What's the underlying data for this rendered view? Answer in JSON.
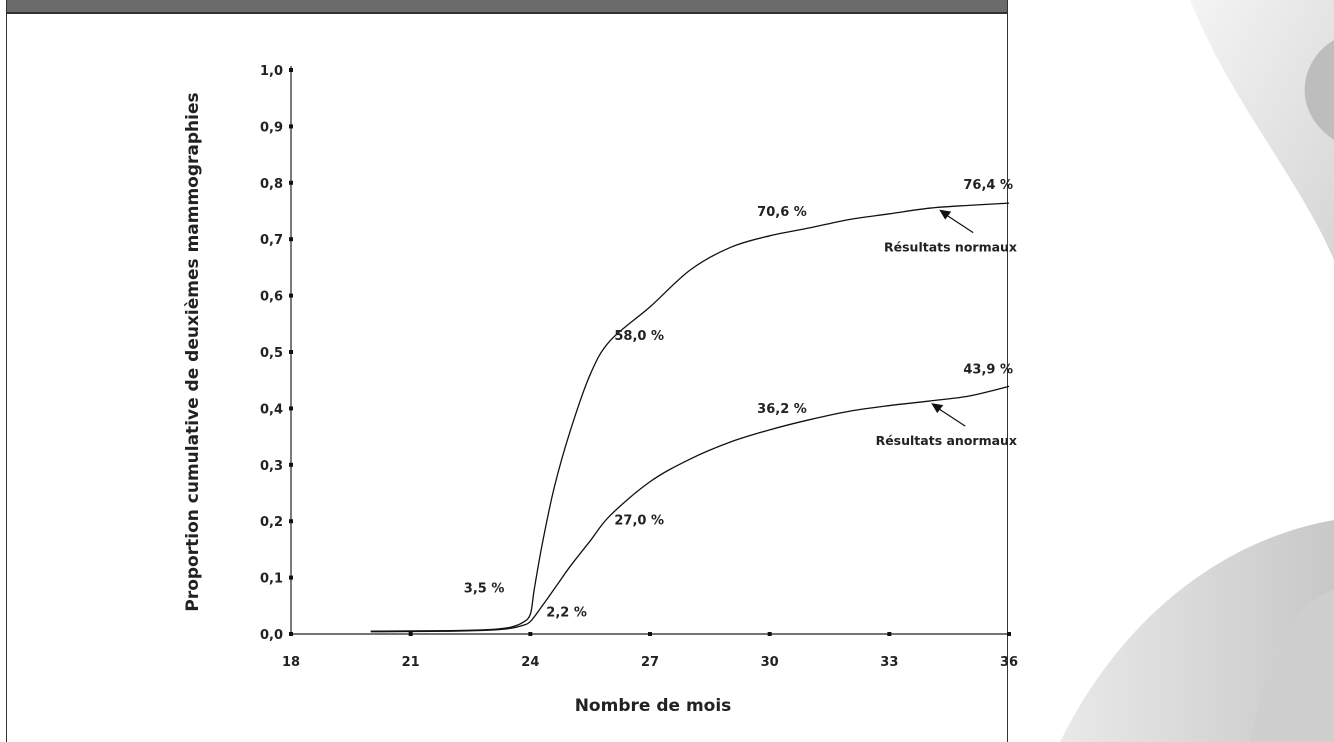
{
  "header": {
    "title": ""
  },
  "chart_data": {
    "type": "line",
    "title": "",
    "xlabel": "Nombre de mois",
    "ylabel": "Proportion cumulative de deuxièmes mammographies",
    "xlim": [
      18,
      36
    ],
    "ylim": [
      0,
      1
    ],
    "x_ticks": [
      {
        "value": 18,
        "label": "18"
      },
      {
        "value": 21,
        "label": "21"
      },
      {
        "value": 24,
        "label": "24"
      },
      {
        "value": 27,
        "label": "27"
      },
      {
        "value": 30,
        "label": "30"
      },
      {
        "value": 33,
        "label": "33"
      },
      {
        "value": 36,
        "label": "36"
      }
    ],
    "y_ticks": [
      {
        "value": 0.0,
        "label": "0,0"
      },
      {
        "value": 0.1,
        "label": "0,1"
      },
      {
        "value": 0.2,
        "label": "0,2"
      },
      {
        "value": 0.3,
        "label": "0,3"
      },
      {
        "value": 0.4,
        "label": "0,4"
      },
      {
        "value": 0.5,
        "label": "0,5"
      },
      {
        "value": 0.6,
        "label": "0,6"
      },
      {
        "value": 0.7,
        "label": "0,7"
      },
      {
        "value": 0.8,
        "label": "0,8"
      },
      {
        "value": 0.9,
        "label": "0,9"
      },
      {
        "value": 1.0,
        "label": "1,0"
      }
    ],
    "grid": false,
    "series": [
      {
        "name": "Résultats normaux",
        "x": [
          20,
          22,
          23,
          23.5,
          23.8,
          24,
          24.1,
          24.3,
          24.6,
          25,
          25.5,
          26,
          27,
          28,
          29,
          30,
          31,
          32,
          33,
          34,
          35,
          36
        ],
        "y": [
          0.005,
          0.006,
          0.008,
          0.012,
          0.02,
          0.035,
          0.08,
          0.16,
          0.26,
          0.36,
          0.46,
          0.52,
          0.58,
          0.645,
          0.685,
          0.706,
          0.72,
          0.735,
          0.745,
          0.755,
          0.76,
          0.764
        ]
      },
      {
        "name": "Résultats anormaux",
        "x": [
          20,
          22,
          23,
          23.5,
          23.8,
          24,
          24.3,
          24.7,
          25,
          25.5,
          26,
          27,
          28,
          29,
          30,
          31,
          32,
          33,
          34,
          35,
          36
        ],
        "y": [
          0.004,
          0.005,
          0.007,
          0.01,
          0.015,
          0.022,
          0.05,
          0.09,
          0.12,
          0.165,
          0.21,
          0.27,
          0.31,
          0.34,
          0.362,
          0.38,
          0.395,
          0.405,
          0.413,
          0.422,
          0.439
        ]
      }
    ],
    "annotations": [
      {
        "text": "3,5 %",
        "x": 23.5,
        "y": 0.035,
        "anchor": "end"
      },
      {
        "text": "2,2 %",
        "x": 24.3,
        "y": 0.022,
        "anchor": "start"
      },
      {
        "text": "58,0 %",
        "x": 27,
        "y": 0.58,
        "anchor": "end"
      },
      {
        "text": "70,6 %",
        "x": 30,
        "y": 0.706,
        "anchor": "middle"
      },
      {
        "text": "76,4 %",
        "x": 36,
        "y": 0.764,
        "anchor": "end"
      },
      {
        "text": "27,0 %",
        "x": 27,
        "y": 0.27,
        "anchor": "end"
      },
      {
        "text": "36,2 %",
        "x": 30,
        "y": 0.362,
        "anchor": "middle"
      },
      {
        "text": "43,9 %",
        "x": 36,
        "y": 0.439,
        "anchor": "end"
      }
    ],
    "legend": [
      {
        "text": "Résultats normaux",
        "series": 0,
        "at_x": 34.2
      },
      {
        "text": "Résultats anormaux",
        "series": 1,
        "at_x": 34.0
      }
    ]
  }
}
